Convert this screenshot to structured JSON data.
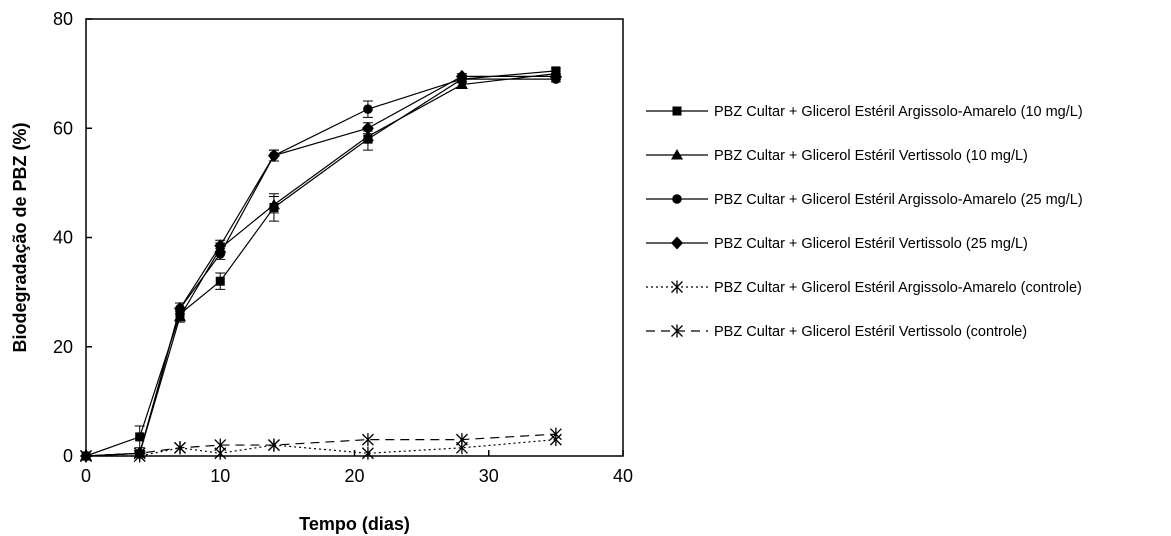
{
  "chart_data": {
    "type": "line",
    "title": "",
    "xlabel": "Tempo (dias)",
    "ylabel": "Biodegradação de PBZ (%)",
    "xlim": [
      0,
      40
    ],
    "ylim": [
      0,
      80
    ],
    "xticks": [
      0,
      10,
      20,
      30,
      40
    ],
    "yticks": [
      0,
      20,
      40,
      60,
      80
    ],
    "grid": false,
    "legend_position": "right",
    "x": [
      0,
      4,
      7,
      10,
      14,
      21,
      28,
      35
    ],
    "series": [
      {
        "name": "PBZ Cultar + Glicerol Estéril Argissolo-Amarelo (10 mg/L)",
        "marker": "square",
        "line": "solid",
        "values": [
          0,
          3.5,
          26,
          32,
          45.5,
          58,
          69,
          70.5
        ],
        "errors": [
          0,
          2.0,
          1.0,
          1.5,
          2.5,
          2.0,
          0.5,
          0.5
        ]
      },
      {
        "name": "PBZ Cultar + Glicerol Estéril Vertissolo (10 mg/L)",
        "marker": "triangle",
        "line": "solid",
        "values": [
          0,
          0.5,
          25.5,
          38,
          46,
          58.5,
          68,
          70
        ],
        "errors": [
          0,
          0.5,
          1.0,
          1.0,
          1.5,
          1.0,
          0.5,
          0.5
        ]
      },
      {
        "name": "PBZ Cultar + Glicerol Estéril Argissolo-Amarelo (25 mg/L)",
        "marker": "circle",
        "line": "solid",
        "values": [
          0,
          0.5,
          27,
          37,
          55,
          63.5,
          69,
          69
        ],
        "errors": [
          0,
          0.5,
          1.0,
          1.0,
          1.0,
          1.5,
          0.5,
          0.5
        ]
      },
      {
        "name": "PBZ Cultar + Glicerol Estéril Vertissolo (25 mg/L)",
        "marker": "diamond",
        "line": "solid",
        "values": [
          0,
          0.5,
          27,
          38.5,
          55,
          60,
          69.5,
          69.5
        ],
        "errors": [
          0,
          0.5,
          1.0,
          1.0,
          1.0,
          1.0,
          0.5,
          0.5
        ]
      },
      {
        "name": "PBZ Cultar + Glicerol Estéril Argissolo-Amarelo (controle)",
        "marker": "asterisk",
        "line": "dotted",
        "values": [
          0,
          0,
          1.5,
          0.5,
          2,
          0.5,
          1.5,
          3
        ],
        "errors": [
          0,
          0,
          0,
          0,
          0,
          0,
          0,
          0
        ]
      },
      {
        "name": "PBZ Cultar + Glicerol Estéril Vertissolo (controle)",
        "marker": "asterisk",
        "line": "dashed",
        "values": [
          0,
          0.5,
          1.5,
          2,
          2,
          3,
          3,
          4
        ],
        "errors": [
          0,
          0,
          0,
          0,
          0,
          0,
          0,
          0
        ]
      }
    ]
  }
}
